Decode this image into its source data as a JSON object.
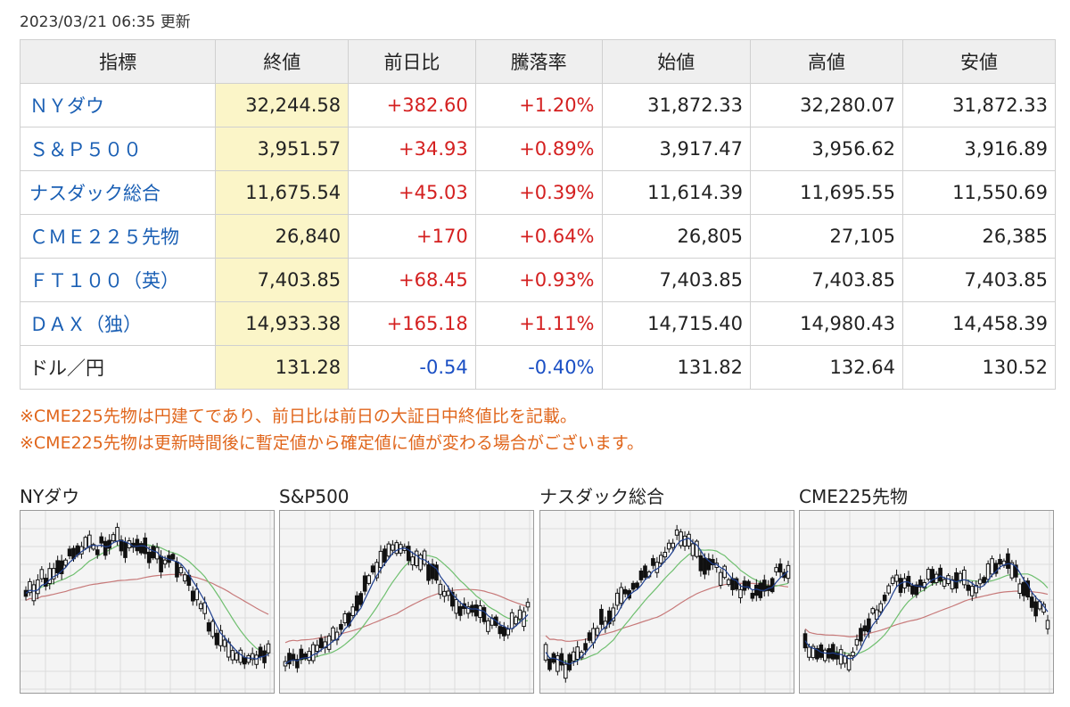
{
  "updated": "2023/03/21 06:35 更新",
  "headers": [
    "指標",
    "終値",
    "前日比",
    "騰落率",
    "始値",
    "高値",
    "安値"
  ],
  "rows": [
    {
      "name": "ＮＹダウ",
      "link": true,
      "close": "32,244.58",
      "change": "+382.60",
      "rate": "+1.20%",
      "open": "31,872.33",
      "high": "32,280.07",
      "low": "31,872.33",
      "dir": "up"
    },
    {
      "name": "Ｓ＆Ｐ５００",
      "link": true,
      "close": "3,951.57",
      "change": "+34.93",
      "rate": "+0.89%",
      "open": "3,917.47",
      "high": "3,956.62",
      "low": "3,916.89",
      "dir": "up"
    },
    {
      "name": "ナスダック総合",
      "link": true,
      "close": "11,675.54",
      "change": "+45.03",
      "rate": "+0.39%",
      "open": "11,614.39",
      "high": "11,695.55",
      "low": "11,550.69",
      "dir": "up"
    },
    {
      "name": "ＣＭＥ２２５先物",
      "link": true,
      "close": "26,840",
      "change": "+170",
      "rate": "+0.64%",
      "open": "26,805",
      "high": "27,105",
      "low": "26,385",
      "dir": "up"
    },
    {
      "name": "ＦＴ１００（英）",
      "link": true,
      "close": "7,403.85",
      "change": "+68.45",
      "rate": "+0.93%",
      "open": "7,403.85",
      "high": "7,403.85",
      "low": "7,403.85",
      "dir": "up"
    },
    {
      "name": "ＤＡＸ（独）",
      "link": true,
      "close": "14,933.38",
      "change": "+165.18",
      "rate": "+1.11%",
      "open": "14,715.40",
      "high": "14,980.43",
      "low": "14,458.39",
      "dir": "up"
    },
    {
      "name": "ドル／円",
      "link": false,
      "close": "131.28",
      "change": "-0.54",
      "rate": "-0.40%",
      "open": "131.82",
      "high": "132.64",
      "low": "130.52",
      "dir": "down"
    }
  ],
  "notes": [
    "※CME225先物は円建てであり、前日比は前日の大証日中終値比を記載。",
    "※CME225先物は更新時間後に暫定値から確定値に値が変わる場合がございます。"
  ],
  "charts": [
    {
      "title": "NYダウ",
      "seed": 1
    },
    {
      "title": "S&P500",
      "seed": 2
    },
    {
      "title": "ナスダック総合",
      "seed": 3
    },
    {
      "title": "CME225先物",
      "seed": 4
    }
  ],
  "colors": {
    "price_link": "#1a5fb4",
    "up": "#d42020",
    "down": "#1a4fc4",
    "note": "#e0661c",
    "ma_short": "#1f3f8f",
    "ma_mid": "#6fbf6f",
    "ma_long": "#c77a7a"
  }
}
